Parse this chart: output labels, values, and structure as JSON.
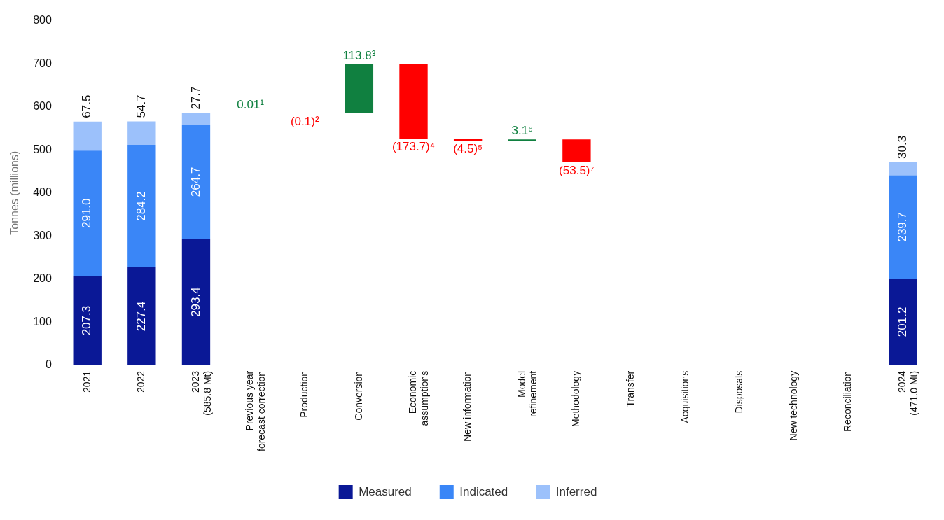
{
  "chart_data": {
    "type": "bar",
    "stacked": true,
    "ylabel": "Tonnes (millions)",
    "ylim": [
      0,
      800
    ],
    "yticks": [
      0,
      100,
      200,
      300,
      400,
      500,
      600,
      700,
      800
    ],
    "grid": false,
    "legend": "bottom",
    "categories": [
      "2021",
      "2022",
      "2023\n(585.8 Mt)",
      "Previous year\nforecast correction",
      "Production",
      "Conversion",
      "Economic\nassumptions",
      "New information",
      "Model\nrefinement",
      "Methodology",
      "Transfer",
      "Acquisitions",
      "Disposals",
      "New technology",
      "Reconciliation",
      "2024\n(471.0 Mt)"
    ],
    "series": [
      {
        "name": "Measured",
        "color": "#0a1896",
        "values": [
          207.3,
          227.4,
          293.4,
          null,
          null,
          null,
          null,
          null,
          null,
          null,
          null,
          null,
          null,
          null,
          null,
          201.2
        ],
        "value_labels": [
          "207.3",
          "227.4",
          "293.4",
          null,
          null,
          null,
          null,
          null,
          null,
          null,
          null,
          null,
          null,
          null,
          null,
          "201.2"
        ]
      },
      {
        "name": "Indicated",
        "color": "#3a86f7",
        "values": [
          291.0,
          284.2,
          264.7,
          null,
          null,
          null,
          null,
          null,
          null,
          null,
          null,
          null,
          null,
          null,
          null,
          239.7
        ],
        "value_labels": [
          "291.0",
          "284.2",
          "264.7",
          null,
          null,
          null,
          null,
          null,
          null,
          null,
          null,
          null,
          null,
          null,
          null,
          "239.7"
        ]
      },
      {
        "name": "Inferred",
        "color": "#9cc1fb",
        "values": [
          67.5,
          54.7,
          27.7,
          null,
          null,
          null,
          null,
          null,
          null,
          null,
          null,
          null,
          null,
          null,
          null,
          30.3
        ],
        "value_labels": [
          "67.5",
          "54.7",
          "27.7",
          null,
          null,
          null,
          null,
          null,
          null,
          null,
          null,
          null,
          null,
          null,
          null,
          "30.3"
        ]
      },
      {
        "colors": [
          null,
          null,
          null,
          "#108040",
          "#ff0000",
          "#108040",
          "#ff0000",
          "#ff0000",
          "#108040",
          "#ff0000",
          null,
          null,
          null,
          null,
          null,
          null
        ],
        "base": [
          null,
          null,
          null,
          585.8,
          585.81,
          585.71,
          699.51,
          525.81,
          521.31,
          524.41,
          null,
          null,
          null,
          null,
          null,
          null
        ],
        "values": [
          null,
          null,
          null,
          0.01,
          -0.1,
          113.8,
          -173.7,
          -4.5,
          3.1,
          -53.5,
          null,
          null,
          null,
          null,
          null,
          null
        ],
        "value_labels": [
          null,
          null,
          null,
          "0.01¹",
          "(0.1)²",
          "113.8³",
          "(173.7)⁴",
          "(4.5)⁵",
          "3.1⁶",
          "(53.5)⁷",
          null,
          null,
          null,
          null,
          null,
          null
        ]
      }
    ]
  }
}
